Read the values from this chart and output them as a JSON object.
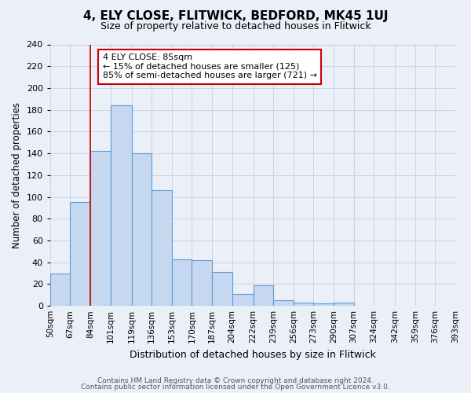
{
  "title": "4, ELY CLOSE, FLITWICK, BEDFORD, MK45 1UJ",
  "subtitle": "Size of property relative to detached houses in Flitwick",
  "xlabel": "Distribution of detached houses by size in Flitwick",
  "ylabel": "Number of detached properties",
  "bin_labels": [
    "50sqm",
    "67sqm",
    "84sqm",
    "101sqm",
    "119sqm",
    "136sqm",
    "153sqm",
    "170sqm",
    "187sqm",
    "204sqm",
    "222sqm",
    "239sqm",
    "256sqm",
    "273sqm",
    "290sqm",
    "307sqm",
    "324sqm",
    "342sqm",
    "359sqm",
    "376sqm",
    "393sqm"
  ],
  "bin_edges": [
    50,
    67,
    84,
    101,
    119,
    136,
    153,
    170,
    187,
    204,
    222,
    239,
    256,
    273,
    290,
    307,
    324,
    342,
    359,
    376,
    393
  ],
  "bar_values": [
    30,
    95,
    142,
    184,
    140,
    106,
    43,
    42,
    31,
    11,
    19,
    5,
    3,
    2,
    3,
    0,
    0,
    0,
    0,
    0
  ],
  "bar_color": "#c5d8f0",
  "bar_edge_color": "#5b9bd5",
  "grid_color": "#c8d4e8",
  "background_color": "#eaeff8",
  "vline_x": 84,
  "vline_color": "#cc0000",
  "annotation_title": "4 ELY CLOSE: 85sqm",
  "annotation_line1": "← 15% of detached houses are smaller (125)",
  "annotation_line2": "85% of semi-detached houses are larger (721) →",
  "annotation_box_facecolor": "#ffffff",
  "annotation_box_edgecolor": "#cc0000",
  "footer1": "Contains HM Land Registry data © Crown copyright and database right 2024.",
  "footer2": "Contains public sector information licensed under the Open Government Licence v3.0.",
  "ylim": [
    0,
    240
  ],
  "yticks": [
    0,
    20,
    40,
    60,
    80,
    100,
    120,
    140,
    160,
    180,
    200,
    220,
    240
  ],
  "title_fontsize": 11,
  "subtitle_fontsize": 9,
  "ylabel_fontsize": 8.5,
  "xlabel_fontsize": 9,
  "tick_fontsize": 8,
  "xtick_fontsize": 7.5,
  "footer_fontsize": 6.5,
  "ann_fontsize": 8
}
